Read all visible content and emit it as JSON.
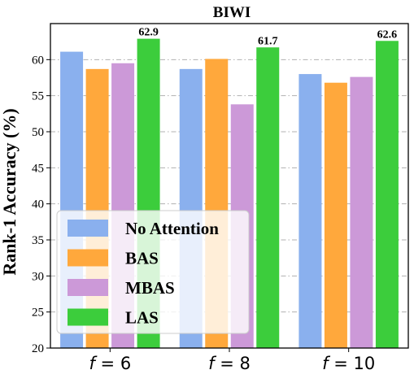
{
  "chart_data": {
    "type": "bar",
    "title": "BIWI",
    "xlabel": "",
    "ylabel": "Rank-1 Accuracy (%)",
    "categories": [
      "f = 6",
      "f = 8",
      "f = 10"
    ],
    "category_labels": [
      {
        "var": "f",
        "rest": " = 6"
      },
      {
        "var": "f",
        "rest": " = 8"
      },
      {
        "var": "f",
        "rest": " = 10"
      }
    ],
    "ylim": [
      20,
      65
    ],
    "yticks": [
      20,
      25,
      30,
      35,
      40,
      45,
      50,
      55,
      60
    ],
    "grid": "horizontal dash-dot",
    "legend_position": "lower-left",
    "series": [
      {
        "name": "No Attention",
        "color": "#8AB0EE",
        "values": [
          61.1,
          58.7,
          58.0
        ]
      },
      {
        "name": "BAS",
        "color": "#FFA83C",
        "values": [
          58.7,
          60.1,
          56.8
        ]
      },
      {
        "name": "MBAS",
        "color": "#CC99D8",
        "values": [
          59.5,
          53.8,
          57.6
        ]
      },
      {
        "name": "LAS",
        "color": "#3CCD3C",
        "values": [
          62.9,
          61.7,
          62.6
        ]
      }
    ],
    "data_labels": [
      {
        "series": 3,
        "index": 0,
        "text": "62.9"
      },
      {
        "series": 3,
        "index": 1,
        "text": "61.7"
      },
      {
        "series": 3,
        "index": 2,
        "text": "62.6"
      }
    ]
  }
}
